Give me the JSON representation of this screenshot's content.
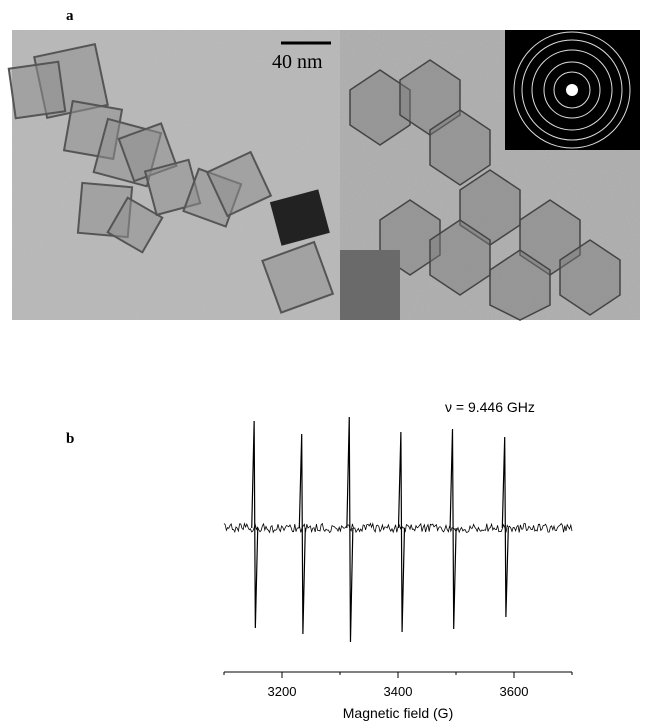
{
  "panels": [
    {
      "label": "a",
      "scale_bar": "40 nm"
    },
    {
      "label": "b"
    }
  ],
  "chart_data": {
    "type": "spectrum",
    "annotation": "ν = 9.446 GHz",
    "xlabel": "Magnetic field (G)",
    "x": [
      3153,
      3235,
      3317,
      3406,
      3495,
      3585
    ],
    "color": "#000000",
    "xlim": [
      3100,
      3700
    ],
    "xticks": [
      3200,
      3400,
      3600
    ],
    "xminorticks": [
      3100,
      3300,
      3500,
      3700
    ]
  }
}
